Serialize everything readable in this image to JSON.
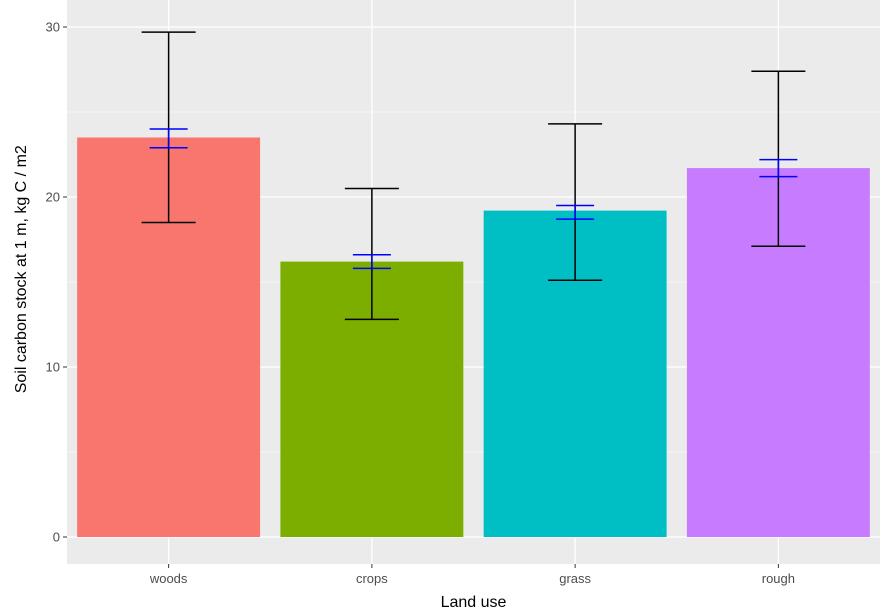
{
  "chart_data": {
    "type": "bar",
    "title": "",
    "xlabel": "Land use",
    "ylabel": "Soil carbon stock at 1 m, kg C / m2",
    "ylim": [
      0,
      31.5
    ],
    "yticks": [
      0,
      10,
      20,
      30
    ],
    "categories": [
      "woods",
      "crops",
      "grass",
      "rough"
    ],
    "values": [
      23.5,
      16.2,
      19.2,
      21.7
    ],
    "colors": [
      "#F8766D",
      "#7CAE00",
      "#00BFC4",
      "#C77CFF"
    ],
    "error_bars_sd": {
      "color": "#000000",
      "lower": [
        18.5,
        12.8,
        15.1,
        17.1
      ],
      "upper": [
        29.7,
        20.5,
        24.3,
        27.4
      ]
    },
    "error_bars_se": {
      "color": "#0000FF",
      "lower": [
        22.9,
        15.8,
        18.7,
        21.2
      ],
      "upper": [
        24.0,
        16.6,
        19.5,
        22.2
      ]
    },
    "grid": true,
    "legend": "none"
  }
}
